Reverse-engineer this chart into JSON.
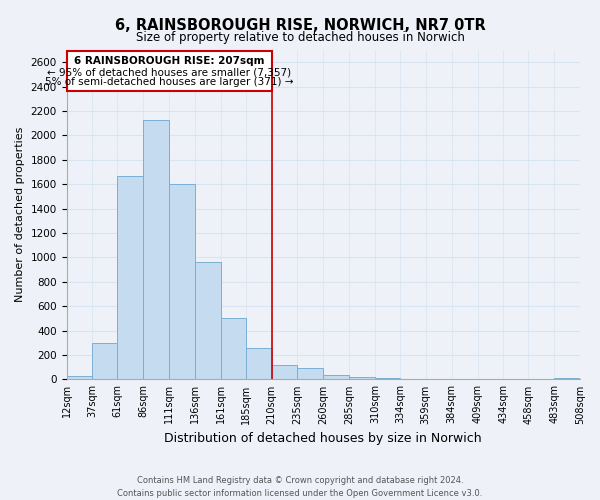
{
  "title": "6, RAINSBOROUGH RISE, NORWICH, NR7 0TR",
  "subtitle": "Size of property relative to detached houses in Norwich",
  "xlabel": "Distribution of detached houses by size in Norwich",
  "ylabel": "Number of detached properties",
  "bar_color": "#c5dcf0",
  "bar_edge_color": "#7aafd4",
  "grid_color": "#d8e4f0",
  "bg_color": "#eef2f8",
  "vline_x": 210,
  "vline_color": "#cc0000",
  "bin_edges": [
    12,
    37,
    61,
    86,
    111,
    136,
    161,
    185,
    210,
    235,
    260,
    285,
    310,
    334,
    359,
    384,
    409,
    434,
    458,
    483,
    508
  ],
  "bin_labels": [
    "12sqm",
    "37sqm",
    "61sqm",
    "86sqm",
    "111sqm",
    "136sqm",
    "161sqm",
    "185sqm",
    "210sqm",
    "235sqm",
    "260sqm",
    "285sqm",
    "310sqm",
    "334sqm",
    "359sqm",
    "384sqm",
    "409sqm",
    "434sqm",
    "458sqm",
    "483sqm",
    "508sqm"
  ],
  "counts": [
    25,
    295,
    1670,
    2130,
    1600,
    960,
    505,
    255,
    120,
    95,
    38,
    20,
    10,
    5,
    3,
    2,
    2,
    1,
    0,
    15
  ],
  "ylim": [
    0,
    2700
  ],
  "yticks": [
    0,
    200,
    400,
    600,
    800,
    1000,
    1200,
    1400,
    1600,
    1800,
    2000,
    2200,
    2400,
    2600
  ],
  "annotation_title": "6 RAINSBOROUGH RISE: 207sqm",
  "annotation_line1": "← 95% of detached houses are smaller (7,357)",
  "annotation_line2": "5% of semi-detached houses are larger (371) →",
  "annotation_box_color": "#ffffff",
  "annotation_box_edge": "#cc0000",
  "footer_line1": "Contains HM Land Registry data © Crown copyright and database right 2024.",
  "footer_line2": "Contains public sector information licensed under the Open Government Licence v3.0."
}
